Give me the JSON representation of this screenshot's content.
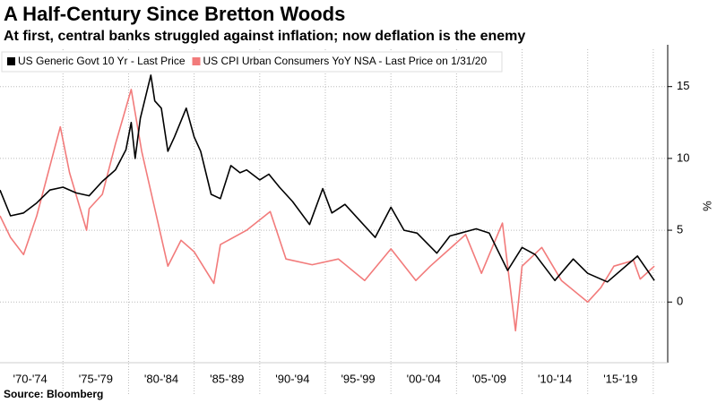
{
  "chart_data": {
    "type": "line",
    "title": "A Half-Century Since Bretton Woods",
    "subtitle": "At first, central banks struggled against inflation; now deflation is the enemy",
    "source": "Source: Bloomberg",
    "ylabel": "%",
    "xlim": [
      1970.2,
      2021.1
    ],
    "ylim": [
      -3.6,
      17.6
    ],
    "yticks": [
      0,
      5,
      10,
      15
    ],
    "xticks": [
      {
        "value": 1972.5,
        "label": "'70-'74"
      },
      {
        "value": 1977.5,
        "label": "'75-'79"
      },
      {
        "value": 1982.5,
        "label": "'80-'84"
      },
      {
        "value": 1987.5,
        "label": "'85-'89"
      },
      {
        "value": 1992.5,
        "label": "'90-'94"
      },
      {
        "value": 1997.5,
        "label": "'95-'99"
      },
      {
        "value": 2002.5,
        "label": "'00-'04"
      },
      {
        "value": 2007.5,
        "label": "'05-'09"
      },
      {
        "value": 2012.5,
        "label": "'10-'14"
      },
      {
        "value": 2017.5,
        "label": "'15-'19"
      }
    ],
    "xgrid": [
      1975,
      1980,
      1985,
      1990,
      1995,
      2000,
      2005,
      2010,
      2015,
      2020
    ],
    "grid": true,
    "legend": "top-left",
    "series": [
      {
        "name": "US Generic Govt 10 Yr - Last Price",
        "color": "#000000",
        "x": [
          1970.2,
          1971,
          1972,
          1973,
          1974,
          1975,
          1976,
          1977,
          1978,
          1979,
          1979.8,
          1980.2,
          1980.5,
          1980.9,
          1981.7,
          1982.0,
          1982.5,
          1983,
          1983.5,
          1984.4,
          1985,
          1985.5,
          1986.3,
          1987,
          1987.8,
          1988.5,
          1989,
          1990,
          1990.7,
          1991.5,
          1992.5,
          1993.8,
          1994.8,
          1995.5,
          1996.5,
          1998.8,
          2000,
          2001,
          2002,
          2003.5,
          2004.5,
          2006.5,
          2007.5,
          2008.9,
          2010,
          2011,
          2012.5,
          2013.9,
          2015,
          2016.5,
          2018.8,
          2020.08
        ],
        "values": [
          7.8,
          6.0,
          6.2,
          6.9,
          7.8,
          8.0,
          7.6,
          7.4,
          8.4,
          9.2,
          10.6,
          12.5,
          10.0,
          12.8,
          15.8,
          14.0,
          13.5,
          10.5,
          11.5,
          13.5,
          11.5,
          10.5,
          7.5,
          7.2,
          9.5,
          9.0,
          9.2,
          8.5,
          8.9,
          8.0,
          7.0,
          5.4,
          7.9,
          6.2,
          6.8,
          4.5,
          6.6,
          5.0,
          4.8,
          3.4,
          4.6,
          5.1,
          4.8,
          2.2,
          3.8,
          3.3,
          1.5,
          3.0,
          2.0,
          1.4,
          3.2,
          1.5
        ]
      },
      {
        "name": "US CPI Urban Consumers YoY NSA - Last Price on 1/31/20",
        "color": "#f27b7b",
        "x": [
          1970.2,
          1971,
          1972,
          1973,
          1974.8,
          1975.5,
          1976.8,
          1977,
          1978,
          1979,
          1980.2,
          1981,
          1982,
          1983,
          1984,
          1985,
          1986.5,
          1987,
          1989,
          1990.8,
          1992,
          1994,
          1996,
          1998,
          2000,
          2001.9,
          2003,
          2005.7,
          2006.9,
          2008.5,
          2009.5,
          2010,
          2011.5,
          2013,
          2015,
          2016,
          2017,
          2018.5,
          2019,
          2020.08
        ],
        "values": [
          6.0,
          4.5,
          3.3,
          6.0,
          12.2,
          9.0,
          5.0,
          6.5,
          7.5,
          11.0,
          14.8,
          10.5,
          6.5,
          2.5,
          4.3,
          3.5,
          1.3,
          4.0,
          5.0,
          6.3,
          3.0,
          2.6,
          3.0,
          1.5,
          3.7,
          1.5,
          2.5,
          4.7,
          2.0,
          5.5,
          -2.0,
          2.5,
          3.8,
          1.5,
          0.0,
          1.0,
          2.5,
          2.9,
          1.6,
          2.5
        ]
      }
    ]
  }
}
